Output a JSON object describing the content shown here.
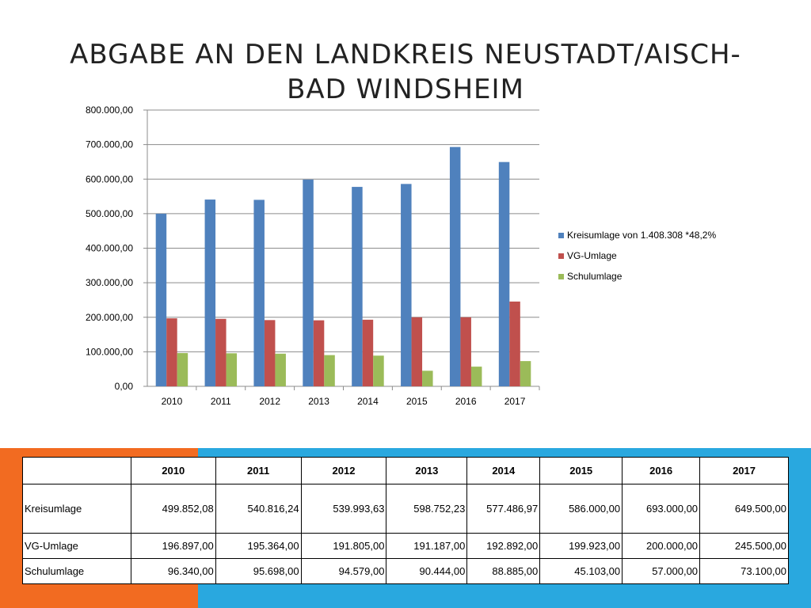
{
  "title": {
    "line1": "ABGABE AN DEN LANDKREIS NEUSTADT/AISCH-",
    "line2": "BAD WINDSHEIM"
  },
  "colors": {
    "series": [
      "#4f81bd",
      "#c0504d",
      "#9bbb59"
    ],
    "band_orange": "#f26b21",
    "band_blue": "#29a8df"
  },
  "chart_data": {
    "type": "bar",
    "categories": [
      "2010",
      "2011",
      "2012",
      "2013",
      "2014",
      "2015",
      "2016",
      "2017"
    ],
    "series": [
      {
        "name": "Kreisumlage von 1.408.308 *48,2%",
        "values": [
          499852.08,
          540816.24,
          539993.63,
          598752.23,
          577486.97,
          586000.0,
          693000.0,
          649500.0
        ]
      },
      {
        "name": "VG-Umlage",
        "values": [
          196897.0,
          195364.0,
          191805.0,
          191187.0,
          192892.0,
          199923.0,
          200000.0,
          245500.0
        ]
      },
      {
        "name": "Schulumlage",
        "values": [
          96340.0,
          95698.0,
          94579.0,
          90444.0,
          88885.0,
          45103.0,
          57000.0,
          73100.0
        ]
      }
    ],
    "ylim": [
      0,
      800000
    ],
    "yticks": [
      0,
      100000,
      200000,
      300000,
      400000,
      500000,
      600000,
      700000,
      800000
    ],
    "ytick_labels": [
      "0,00",
      "100.000,00",
      "200.000,00",
      "300.000,00",
      "400.000,00",
      "500.000,00",
      "600.000,00",
      "700.000,00",
      "800.000,00"
    ],
    "grid": true,
    "legend": "right"
  },
  "table": {
    "headers": [
      "",
      "2010",
      "2011",
      "2012",
      "2013",
      "2014",
      "2015",
      "2016",
      "2017"
    ],
    "rows": [
      [
        "Kreisumlage",
        "499.852,08",
        "540.816,24",
        "539.993,63",
        "598.752,23",
        "577.486,97",
        "586.000,00",
        "693.000,00",
        "649.500,00"
      ],
      [
        "VG-Umlage",
        "196.897,00",
        "195.364,00",
        "191.805,00",
        "191.187,00",
        "192.892,00",
        "199.923,00",
        "200.000,00",
        "245.500,00"
      ],
      [
        "Schulumlage",
        "96.340,00",
        "95.698,00",
        "94.579,00",
        "90.444,00",
        "88.885,00",
        "45.103,00",
        "57.000,00",
        "73.100,00"
      ]
    ]
  }
}
